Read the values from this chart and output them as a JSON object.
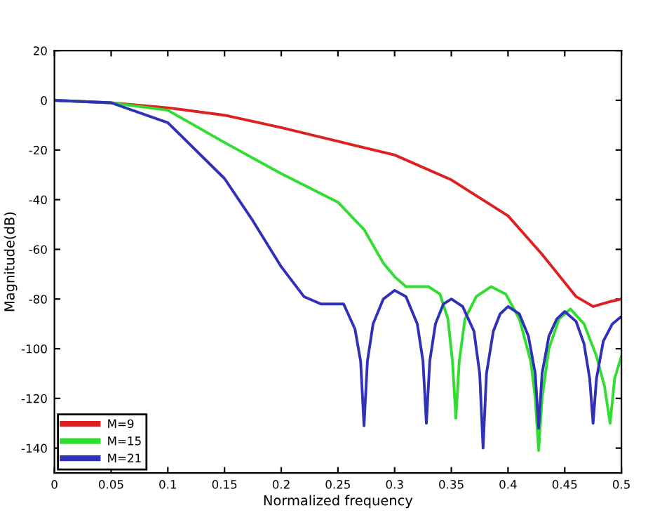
{
  "chart_data": {
    "type": "line",
    "xlabel": "Normalized frequency",
    "ylabel": "Magnitude(dB)",
    "xlim": [
      0,
      0.5
    ],
    "ylim": [
      -150,
      20
    ],
    "xticks": [
      0,
      0.05,
      0.1,
      0.15,
      0.2,
      0.25,
      0.3,
      0.35,
      0.4,
      0.45,
      0.5
    ],
    "yticks": [
      -140,
      -120,
      -100,
      -80,
      -60,
      -40,
      -20,
      0,
      20
    ],
    "grid": false,
    "legend": "bottom left",
    "line_style": "solid",
    "marker": "none",
    "series": [
      {
        "name": "M=9",
        "color": "#dd2020",
        "x": [
          0,
          0.05,
          0.1,
          0.15,
          0.2,
          0.25,
          0.3,
          0.35,
          0.4,
          0.43,
          0.46,
          0.475,
          0.49,
          0.5
        ],
        "values": [
          0,
          -1,
          -3,
          -6,
          -11,
          -16.5,
          -22,
          -32,
          -46.5,
          -62,
          -79,
          -83,
          -81,
          -80
        ]
      },
      {
        "name": "M=15",
        "color": "#30dd30",
        "x": [
          0,
          0.05,
          0.1,
          0.15,
          0.2,
          0.25,
          0.273,
          0.29,
          0.3,
          0.31,
          0.33,
          0.34,
          0.347,
          0.351,
          0.354,
          0.357,
          0.362,
          0.372,
          0.385,
          0.398,
          0.41,
          0.42,
          0.424,
          0.427,
          0.43,
          0.436,
          0.445,
          0.455,
          0.467,
          0.478,
          0.485,
          0.49,
          0.494,
          0.5
        ],
        "values": [
          0,
          -1,
          -4,
          -17,
          -29.5,
          -41,
          -52,
          -65.5,
          -71,
          -75,
          -75,
          -78,
          -88,
          -105,
          -128,
          -105,
          -88,
          -79,
          -75,
          -78,
          -88,
          -105,
          -120,
          -141,
          -120,
          -100,
          -88,
          -84,
          -90,
          -103,
          -115,
          -130,
          -112,
          -103
        ]
      },
      {
        "name": "M=21",
        "color": "#3030b8",
        "x": [
          0,
          0.05,
          0.1,
          0.15,
          0.175,
          0.2,
          0.22,
          0.235,
          0.255,
          0.265,
          0.27,
          0.273,
          0.276,
          0.281,
          0.29,
          0.3,
          0.31,
          0.32,
          0.325,
          0.328,
          0.331,
          0.336,
          0.343,
          0.35,
          0.36,
          0.37,
          0.375,
          0.378,
          0.381,
          0.387,
          0.393,
          0.4,
          0.41,
          0.418,
          0.424,
          0.427,
          0.43,
          0.436,
          0.443,
          0.45,
          0.46,
          0.467,
          0.472,
          0.475,
          0.478,
          0.484,
          0.492,
          0.5
        ],
        "values": [
          0,
          -1,
          -9,
          -31.5,
          -48.5,
          -67,
          -79,
          -82,
          -82,
          -92,
          -105,
          -131,
          -105,
          -90,
          -80,
          -76.5,
          -79,
          -90,
          -105,
          -130,
          -105,
          -90,
          -82,
          -80,
          -83,
          -93,
          -110,
          -140,
          -110,
          -93,
          -86,
          -83,
          -86,
          -95,
          -110,
          -132,
          -110,
          -95,
          -88,
          -85,
          -89,
          -98,
          -112,
          -130,
          -112,
          -97,
          -90,
          -87
        ]
      }
    ]
  }
}
